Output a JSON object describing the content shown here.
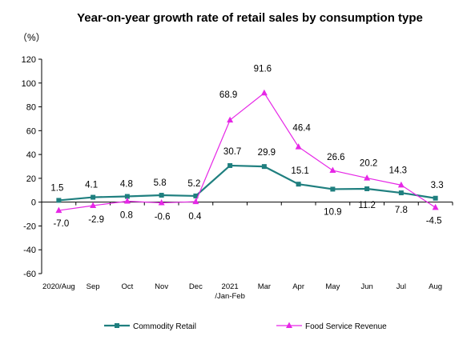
{
  "chart_data": {
    "type": "line",
    "title": "Year-on-year growth rate of retail sales by consumption type",
    "unit_label": "（%）",
    "categories": [
      "2020/Aug",
      "Sep",
      "Oct",
      "Nov",
      "Dec",
      "2021\n/Jan-Feb",
      "Mar",
      "Apr",
      "May",
      "Jun",
      "Jul",
      "Aug"
    ],
    "ylim": [
      -60,
      120
    ],
    "yticks": [
      120,
      100,
      80,
      60,
      40,
      20,
      0,
      -20,
      -40,
      -60
    ],
    "grid": false,
    "legend_position": "bottom",
    "series": [
      {
        "name": "Commodity Retail",
        "color": "#1F7F7F",
        "marker": "square",
        "values": [
          1.5,
          4.1,
          4.8,
          5.8,
          5.2,
          30.7,
          29.9,
          15.1,
          10.9,
          11.2,
          7.8,
          3.3
        ],
        "labels": [
          "1.5",
          "4.1",
          "4.8",
          "5.8",
          "5.2",
          "30.7",
          "29.9",
          "15.1",
          "10.9",
          "11.2",
          "7.8",
          "3.3"
        ]
      },
      {
        "name": "Food Service Revenue",
        "color": "#E627E6",
        "marker": "triangle",
        "values": [
          -7.0,
          -2.9,
          0.8,
          -0.6,
          0.4,
          68.9,
          91.6,
          46.4,
          26.6,
          20.2,
          14.3,
          -4.5
        ],
        "labels": [
          "-7.0",
          "-2.9",
          "0.8",
          "-0.6",
          "0.4",
          "68.9",
          "91.6",
          "46.4",
          "26.6",
          "20.2",
          "14.3",
          "-4.5"
        ]
      }
    ]
  }
}
